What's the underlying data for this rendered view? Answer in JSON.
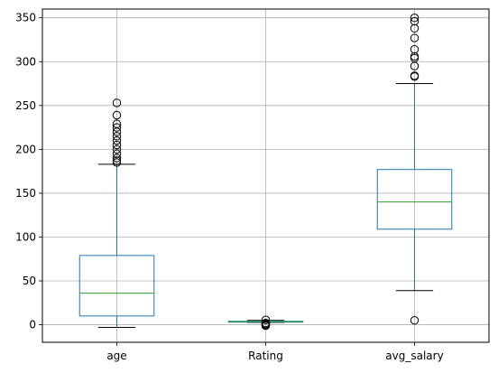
{
  "chart_data": {
    "type": "boxplot",
    "title": "",
    "xlabel": "",
    "ylabel": "",
    "ylim": [
      -20,
      360
    ],
    "yticks": [
      0,
      50,
      100,
      150,
      200,
      250,
      300,
      350
    ],
    "grid": true,
    "categories": [
      "age",
      "Rating",
      "avg_salary"
    ],
    "boxes": [
      {
        "name": "age",
        "whisker_low": -3,
        "q1": 10,
        "median": 36,
        "q3": 79,
        "whisker_high": 183,
        "outliers": [
          185,
          187,
          190,
          195,
          200,
          205,
          210,
          215,
          220,
          225,
          229,
          239,
          253
        ]
      },
      {
        "name": "Rating",
        "whisker_low": 2.6,
        "q1": 3.3,
        "median": 3.7,
        "q3": 4.0,
        "whisker_high": 5.0,
        "outliers": [
          -1,
          -1,
          0,
          1,
          1.5,
          2,
          5.5
        ]
      },
      {
        "name": "avg_salary",
        "whisker_low": 39,
        "q1": 109,
        "median": 140,
        "q3": 177,
        "whisker_high": 275,
        "outliers": [
          5,
          283,
          284,
          295,
          304,
          306,
          314,
          327,
          338,
          346,
          350
        ]
      }
    ],
    "colors": {
      "box": "#1f77b4",
      "median": "#2ca02c",
      "whisker": "#1f77b4",
      "cap": "#000000",
      "outlier": "#000000",
      "grid": "#b0b0b0"
    }
  }
}
